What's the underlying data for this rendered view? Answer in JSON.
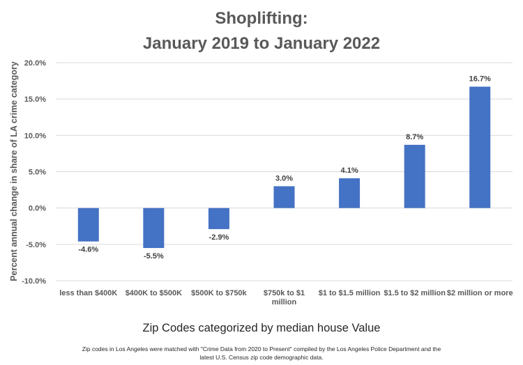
{
  "chart_data": {
    "type": "bar",
    "title_lines": [
      "Shoplifting:",
      "January 2019 to January 2022"
    ],
    "xlabel": "Zip Codes categorized by median house Value",
    "ylabel": "Percent annual change in share of LA crime category",
    "categories": [
      "less than $400K",
      "$400K to $500K",
      "$500K to $750k",
      "$750k to $1 million",
      "$1 to $1.5 million",
      "$1.5 to $2 million",
      "$2 million or more"
    ],
    "category_lines": [
      [
        "less than $400K"
      ],
      [
        "$400K to $500K"
      ],
      [
        "$500K to $750k"
      ],
      [
        "$750k to $1",
        "million"
      ],
      [
        "$1 to $1.5 million"
      ],
      [
        "$1.5 to $2 million"
      ],
      [
        "$2 million or more"
      ]
    ],
    "values": [
      -4.6,
      -5.5,
      -2.9,
      3.0,
      4.1,
      8.7,
      16.7
    ],
    "data_labels": [
      "-4.6%",
      "-5.5%",
      "-2.9%",
      "3.0%",
      "4.1%",
      "8.7%",
      "16.7%"
    ],
    "ylim": [
      -10,
      20
    ],
    "yticks": [
      -10,
      -5,
      0,
      5,
      10,
      15,
      20
    ],
    "ytick_labels": [
      "-10.0%",
      "-5.0%",
      "0.0%",
      "5.0%",
      "10.0%",
      "15.0%",
      "20.0%"
    ],
    "grid": true,
    "bar_color": "#4472c4",
    "grid_color": "#d9d9d9"
  },
  "footnote": {
    "line1": "Zip codes in Los Angeles were matched with \"Crime Data from 2020 to Present\" compiled by the Los Angeles Police Department and the",
    "line2": "latest U.S. Census zip code demographic data."
  }
}
